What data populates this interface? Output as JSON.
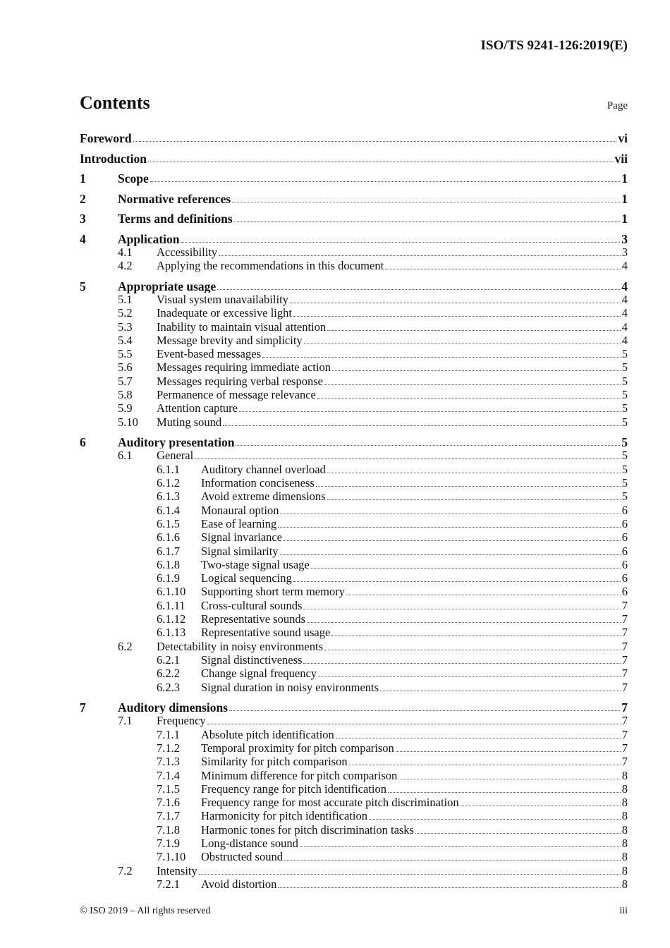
{
  "header": {
    "doc_id": "ISO/TS 9241-126:2019(E)"
  },
  "toc": {
    "title": "Contents",
    "page_label": "Page",
    "entries": [
      {
        "level": 0,
        "num": "",
        "title": "Foreword",
        "page": "vi"
      },
      {
        "level": 0,
        "num": "",
        "title": "Introduction",
        "page": "vii"
      },
      {
        "level": 1,
        "num": "1",
        "title": "Scope",
        "page": "1"
      },
      {
        "level": 1,
        "num": "2",
        "title": "Normative references",
        "page": "1"
      },
      {
        "level": 1,
        "num": "3",
        "title": "Terms and definitions",
        "page": "1"
      },
      {
        "level": 1,
        "num": "4",
        "title": "Application",
        "page": "3"
      },
      {
        "level": 2,
        "num": "4.1",
        "title": "Accessibility",
        "page": "3"
      },
      {
        "level": 2,
        "num": "4.2",
        "title": "Applying the recommendations in this document",
        "page": "4"
      },
      {
        "level": 1,
        "num": "5",
        "title": "Appropriate usage",
        "page": "4"
      },
      {
        "level": 2,
        "num": "5.1",
        "title": "Visual system unavailability",
        "page": "4"
      },
      {
        "level": 2,
        "num": "5.2",
        "title": "Inadequate or excessive light",
        "page": "4"
      },
      {
        "level": 2,
        "num": "5.3",
        "title": "Inability to maintain visual attention",
        "page": "4"
      },
      {
        "level": 2,
        "num": "5.4",
        "title": "Message brevity and simplicity",
        "page": "4"
      },
      {
        "level": 2,
        "num": "5.5",
        "title": "Event-based messages",
        "page": "5"
      },
      {
        "level": 2,
        "num": "5.6",
        "title": "Messages requiring immediate action",
        "page": "5"
      },
      {
        "level": 2,
        "num": "5.7",
        "title": "Messages requiring verbal response",
        "page": "5"
      },
      {
        "level": 2,
        "num": "5.8",
        "title": "Permanence of message relevance",
        "page": "5"
      },
      {
        "level": 2,
        "num": "5.9",
        "title": "Attention capture",
        "page": "5"
      },
      {
        "level": 2,
        "num": "5.10",
        "title": "Muting sound",
        "page": "5"
      },
      {
        "level": 1,
        "num": "6",
        "title": "Auditory presentation",
        "page": "5"
      },
      {
        "level": 2,
        "num": "6.1",
        "title": "General",
        "page": "5"
      },
      {
        "level": 3,
        "num": "6.1.1",
        "title": "Auditory channel overload",
        "page": "5"
      },
      {
        "level": 3,
        "num": "6.1.2",
        "title": "Information conciseness",
        "page": "5"
      },
      {
        "level": 3,
        "num": "6.1.3",
        "title": "Avoid extreme dimensions",
        "page": "5"
      },
      {
        "level": 3,
        "num": "6.1.4",
        "title": "Monaural option",
        "page": "6"
      },
      {
        "level": 3,
        "num": "6.1.5",
        "title": "Ease of learning",
        "page": "6"
      },
      {
        "level": 3,
        "num": "6.1.6",
        "title": "Signal invariance",
        "page": "6"
      },
      {
        "level": 3,
        "num": "6.1.7",
        "title": "Signal similarity",
        "page": "6"
      },
      {
        "level": 3,
        "num": "6.1.8",
        "title": "Two-stage signal usage",
        "page": "6"
      },
      {
        "level": 3,
        "num": "6.1.9",
        "title": "Logical sequencing",
        "page": "6"
      },
      {
        "level": 3,
        "num": "6.1.10",
        "title": "Supporting short term memory",
        "page": "6"
      },
      {
        "level": 3,
        "num": "6.1.11",
        "title": "Cross-cultural sounds",
        "page": "7"
      },
      {
        "level": 3,
        "num": "6.1.12",
        "title": "Representative sounds",
        "page": "7"
      },
      {
        "level": 3,
        "num": "6.1.13",
        "title": "Representative sound usage",
        "page": "7"
      },
      {
        "level": 2,
        "num": "6.2",
        "title": "Detectability in noisy environments",
        "page": "7"
      },
      {
        "level": 3,
        "num": "6.2.1",
        "title": "Signal distinctiveness",
        "page": "7"
      },
      {
        "level": 3,
        "num": "6.2.2",
        "title": "Change signal frequency",
        "page": "7"
      },
      {
        "level": 3,
        "num": "6.2.3",
        "title": "Signal duration in noisy environments",
        "page": "7"
      },
      {
        "level": 1,
        "num": "7",
        "title": "Auditory dimensions",
        "page": "7"
      },
      {
        "level": 2,
        "num": "7.1",
        "title": "Frequency",
        "page": "7"
      },
      {
        "level": 3,
        "num": "7.1.1",
        "title": "Absolute pitch identification",
        "page": "7"
      },
      {
        "level": 3,
        "num": "7.1.2",
        "title": "Temporal proximity for pitch comparison",
        "page": "7"
      },
      {
        "level": 3,
        "num": "7.1.3",
        "title": "Similarity for pitch comparison",
        "page": "7"
      },
      {
        "level": 3,
        "num": "7.1.4",
        "title": "Minimum difference for pitch comparison",
        "page": "8"
      },
      {
        "level": 3,
        "num": "7.1.5",
        "title": "Frequency range for pitch identification",
        "page": "8"
      },
      {
        "level": 3,
        "num": "7.1.6",
        "title": "Frequency range for most accurate pitch discrimination",
        "page": "8"
      },
      {
        "level": 3,
        "num": "7.1.7",
        "title": "Harmonicity for pitch identification",
        "page": "8"
      },
      {
        "level": 3,
        "num": "7.1.8",
        "title": "Harmonic tones for pitch discrimination tasks",
        "page": "8"
      },
      {
        "level": 3,
        "num": "7.1.9",
        "title": "Long-distance sound",
        "page": "8"
      },
      {
        "level": 3,
        "num": "7.1.10",
        "title": "Obstructed sound",
        "page": "8"
      },
      {
        "level": 2,
        "num": "7.2",
        "title": "Intensity",
        "page": "8"
      },
      {
        "level": 3,
        "num": "7.2.1",
        "title": "Avoid distortion",
        "page": "8"
      }
    ]
  },
  "footer": {
    "copyright": "© ISO 2019 – All rights reserved",
    "page_number": "iii"
  }
}
